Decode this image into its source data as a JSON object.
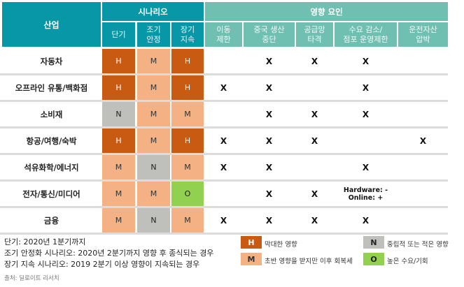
{
  "header": {
    "industry_label": "산업",
    "scenario_group": "시나리오",
    "impact_group": "영향 요인",
    "scenario_columns": [
      {
        "line1": "단기",
        "line2": ""
      },
      {
        "line1": "조기",
        "line2": "안정"
      },
      {
        "line1": "장기",
        "line2": "지속"
      }
    ],
    "impact_columns": [
      {
        "line1": "이동",
        "line2": "제한"
      },
      {
        "line1": "중국 생산",
        "line2": "중단"
      },
      {
        "line1": "공급망",
        "line2": "타격"
      },
      {
        "line1": "수요 감소/",
        "line2": "점포 운영제한"
      },
      {
        "line1": "운전자산",
        "line2": "압박"
      }
    ]
  },
  "rows": [
    {
      "industry": "자동차",
      "scenario": [
        "H",
        "M",
        "H"
      ],
      "impact": [
        "",
        "X",
        "X",
        "X",
        ""
      ]
    },
    {
      "industry": "오프라인 유통/백화점",
      "scenario": [
        "H",
        "M",
        "H"
      ],
      "impact": [
        "X",
        "X",
        "",
        "X",
        ""
      ]
    },
    {
      "industry": "소비재",
      "scenario": [
        "N",
        "M",
        "M"
      ],
      "impact": [
        "",
        "X",
        "X",
        "X",
        ""
      ]
    },
    {
      "industry": "항공/여행/숙박",
      "scenario": [
        "H",
        "M",
        "H"
      ],
      "impact": [
        "X",
        "X",
        "X",
        "",
        "X"
      ]
    },
    {
      "industry": "석유화학/에너지",
      "scenario": [
        "M",
        "N",
        "M"
      ],
      "impact": [
        "X",
        "X",
        "",
        "X",
        ""
      ]
    },
    {
      "industry": "전자/통신/미디어",
      "scenario": [
        "M",
        "M",
        "O"
      ],
      "impact": [
        "",
        "X",
        "X",
        "",
        ""
      ],
      "note": {
        "line1": "Hardware: -",
        "line2": "Online: +"
      }
    },
    {
      "industry": "금융",
      "scenario": [
        "M",
        "N",
        "M"
      ],
      "impact": [
        "X",
        "X",
        "X",
        "X",
        ""
      ]
    }
  ],
  "footnotes": [
    "단기: 2020년 1분기까지",
    "조기 안정화 시나리오: 2020년 2분기까지 영향 후 종식되는 경우",
    "장기 지속 시나리오: 2019 2분기 이상 영향이 지속되는 경우"
  ],
  "source": "출처: 딜로이트 리서치",
  "legend": [
    {
      "code": "H",
      "label": "막대한 영향",
      "color": "#c85a12"
    },
    {
      "code": "M",
      "label": "초반 영향을 받지만 이후 회복세",
      "color": "#f4b183"
    },
    {
      "code": "N",
      "label": "중립적 또는 적은 영향",
      "color": "#bfbfbb"
    },
    {
      "code": "O",
      "label": "높은 수요/기회",
      "color": "#92d050"
    }
  ],
  "colors": {
    "scenario_header": "#0897a6",
    "impact_header": "#6fc0b0",
    "severity_high": "#c85a12",
    "severity_medium": "#f4b183",
    "severity_neutral": "#bfbfbb",
    "severity_opportunity": "#92d050"
  }
}
